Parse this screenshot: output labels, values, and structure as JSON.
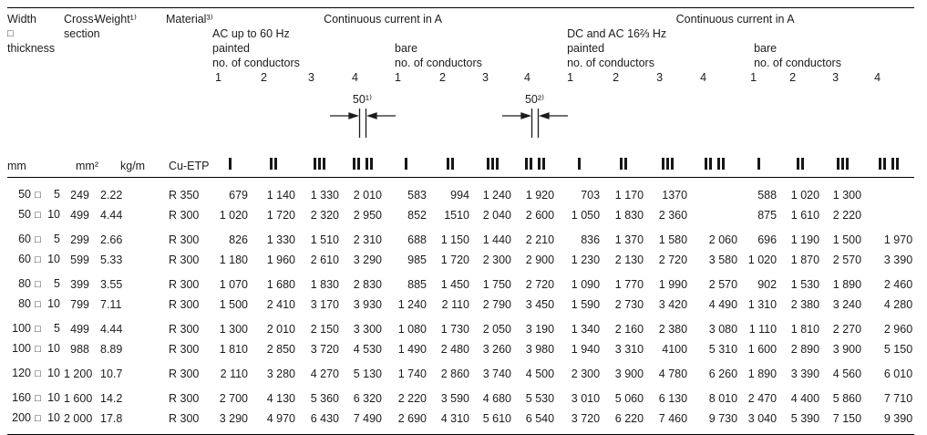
{
  "colors": {
    "background": "#ffffff",
    "text": "#1c1c1c",
    "rule": "#000000"
  },
  "header": {
    "width_lines": [
      "Width",
      "□",
      "thickness"
    ],
    "cross_lines": [
      "Cross-",
      "section"
    ],
    "weight": "Weight¹⁾",
    "material": "Material³⁾",
    "ac": {
      "title": "Continuous current in A",
      "subtitle": "AC up to 60 Hz",
      "painted": {
        "label": "painted",
        "conductors": "no. of conductors",
        "cols": [
          "1",
          "2",
          "3",
          "4"
        ]
      },
      "bare": {
        "label": "bare",
        "conductors": "no. of conductors",
        "cols": [
          "1",
          "2",
          "3",
          "4"
        ]
      }
    },
    "dc": {
      "title": "Continuous current in A",
      "subtitle": "DC and AC 16⅔ Hz",
      "painted": {
        "label": "painted",
        "conductors": "no. of conductors",
        "cols": [
          "1",
          "2",
          "3",
          "4"
        ]
      },
      "bare": {
        "label": "bare",
        "conductors": "no. of conductors",
        "cols": [
          "1",
          "2",
          "3",
          "4"
        ]
      }
    },
    "gap_ac": "50¹⁾",
    "gap_dc": "50²⁾"
  },
  "units": {
    "size": "mm",
    "cross": "mm²",
    "weight": "kg/m",
    "material": "Cu-ETP"
  },
  "table": {
    "size_symbol": "□",
    "conductor_icons": [
      1,
      2,
      3,
      4,
      1,
      2,
      3,
      4,
      1,
      2,
      3,
      4,
      1,
      2,
      3,
      4
    ],
    "row_groups": [
      [
        {
          "w": "50",
          "t": "5",
          "cross": "249",
          "weight": "2.22",
          "material": "R 350",
          "currents": [
            "679",
            "1 140",
            "1 330",
            "2 010",
            "583",
            "994",
            "1 240",
            "1 920",
            "703",
            "1 170",
            "1370",
            "",
            "588",
            "1 020",
            "1 300",
            ""
          ]
        },
        {
          "w": "50",
          "t": "10",
          "cross": "499",
          "weight": "4.44",
          "material": "R 300",
          "currents": [
            "1 020",
            "1 720",
            "2 320",
            "2 950",
            "852",
            "1510",
            "2 040",
            "2 600",
            "1 050",
            "1 830",
            "2 360",
            "",
            "875",
            "1 610",
            "2 220",
            ""
          ]
        }
      ],
      [
        {
          "w": "60",
          "t": "5",
          "cross": "299",
          "weight": "2.66",
          "material": "R 300",
          "currents": [
            "826",
            "1 330",
            "1 510",
            "2 310",
            "688",
            "1 150",
            "1 440",
            "2 210",
            "836",
            "1 370",
            "1 580",
            "2 060",
            "696",
            "1 190",
            "1 500",
            "1 970"
          ]
        },
        {
          "w": "60",
          "t": "10",
          "cross": "599",
          "weight": "5.33",
          "material": "R 300",
          "currents": [
            "1 180",
            "1 960",
            "2 610",
            "3 290",
            "985",
            "1 720",
            "2 300",
            "2 900",
            "1 230",
            "2 130",
            "2 720",
            "3 580",
            "1 020",
            "1 870",
            "2 570",
            "3 390"
          ]
        }
      ],
      [
        {
          "w": "80",
          "t": "5",
          "cross": "399",
          "weight": "3.55",
          "material": "R 300",
          "currents": [
            "1 070",
            "1 680",
            "1 830",
            "2 830",
            "885",
            "1 450",
            "1 750",
            "2 720",
            "1 090",
            "1 770",
            "1 990",
            "2 570",
            "902",
            "1 530",
            "1 890",
            "2 460"
          ]
        },
        {
          "w": "80",
          "t": "10",
          "cross": "799",
          "weight": "7.11",
          "material": "R 300",
          "currents": [
            "1 500",
            "2 410",
            "3 170",
            "3 930",
            "1 240",
            "2 110",
            "2 790",
            "3 450",
            "1 590",
            "2 730",
            "3 420",
            "4 490",
            "1 310",
            "2 380",
            "3 240",
            "4 280"
          ]
        }
      ],
      [
        {
          "w": "100",
          "t": "5",
          "cross": "499",
          "weight": "4.44",
          "material": "R 300",
          "currents": [
            "1 300",
            "2 010",
            "2 150",
            "3 300",
            "1 080",
            "1 730",
            "2 050",
            "3 190",
            "1 340",
            "2 160",
            "2 380",
            "3 080",
            "1 110",
            "1 810",
            "2 270",
            "2 960"
          ]
        },
        {
          "w": "100",
          "t": "10",
          "cross": "988",
          "weight": "8.89",
          "material": "R 300",
          "currents": [
            "1 810",
            "2 850",
            "3 720",
            "4 530",
            "1 490",
            "2 480",
            "3 260",
            "3 980",
            "1 940",
            "3 310",
            "4100",
            "5 310",
            "1 600",
            "2 890",
            "3 900",
            "5 150"
          ]
        }
      ],
      [
        {
          "w": "120",
          "t": "10",
          "cross": "1 200",
          "weight": "10.7",
          "material": "R 300",
          "currents": [
            "2 110",
            "3 280",
            "4 270",
            "5 130",
            "1 740",
            "2 860",
            "3 740",
            "4 500",
            "2 300",
            "3 900",
            "4 780",
            "6 260",
            "1 890",
            "3 390",
            "4 560",
            "6 010"
          ]
        }
      ],
      [
        {
          "w": "160",
          "t": "10",
          "cross": "1 600",
          "weight": "14.2",
          "material": "R 300",
          "currents": [
            "2 700",
            "4 130",
            "5 360",
            "6 320",
            "2 220",
            "3 590",
            "4 680",
            "5 530",
            "3 010",
            "5 060",
            "6 130",
            "8 010",
            "2 470",
            "4 400",
            "5 860",
            "7 710"
          ]
        },
        {
          "w": "200",
          "t": "10",
          "cross": "2 000",
          "weight": "17.8",
          "material": "R 300",
          "currents": [
            "3 290",
            "4 970",
            "6 430",
            "7 490",
            "2 690",
            "4 310",
            "5 610",
            "6 540",
            "3 720",
            "6 220",
            "7 460",
            "9 730",
            "3 040",
            "5 390",
            "7 150",
            "9 390"
          ]
        }
      ]
    ]
  }
}
